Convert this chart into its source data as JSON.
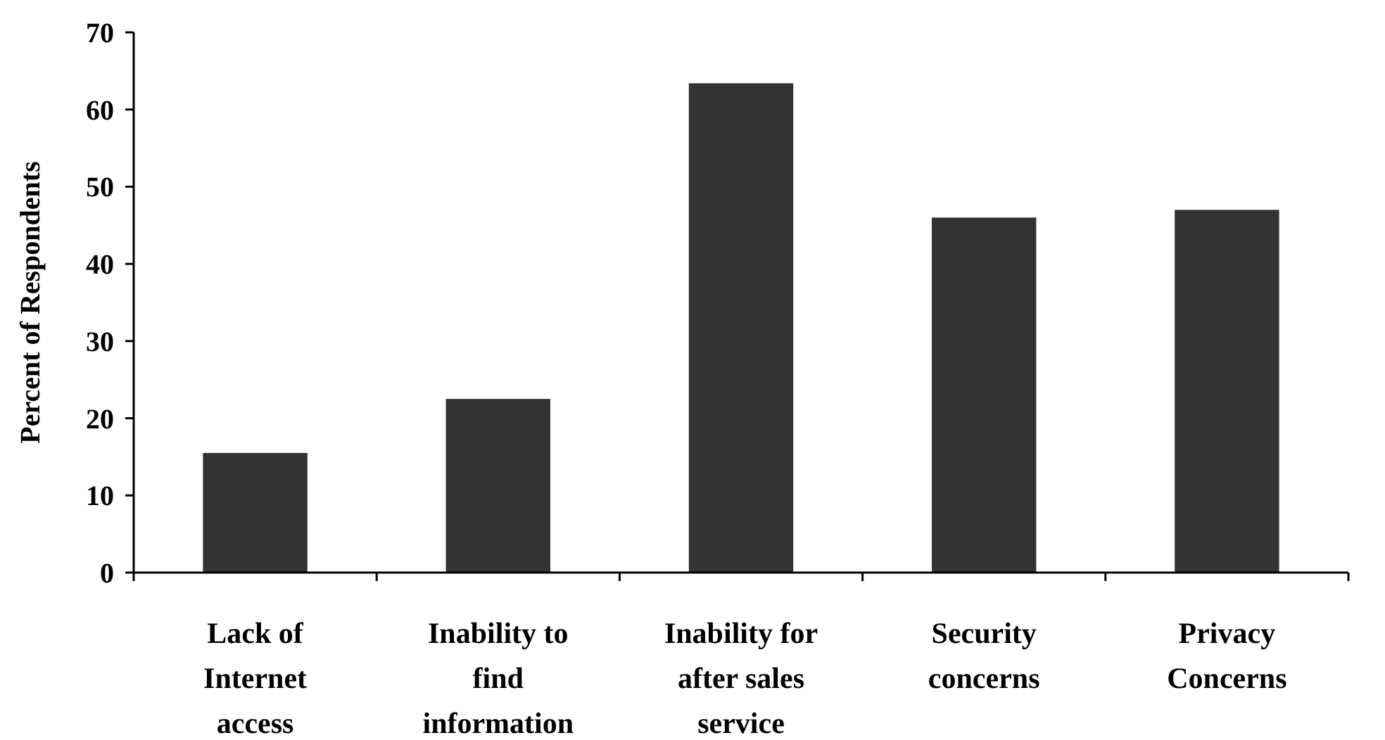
{
  "chart_data": {
    "type": "bar",
    "ylabel": "Percent of Respondents",
    "categories": [
      "Lack of Internet access",
      "Inability to find information",
      "Inability for after sales service",
      "Security concerns",
      "Privacy Concerns"
    ],
    "values": [
      15.5,
      22.5,
      63.4,
      46,
      47
    ],
    "color": "#333333",
    "ylim": [
      0,
      70
    ],
    "yticks": [
      0,
      10,
      20,
      30,
      40,
      50,
      60,
      70
    ],
    "grid": false
  }
}
